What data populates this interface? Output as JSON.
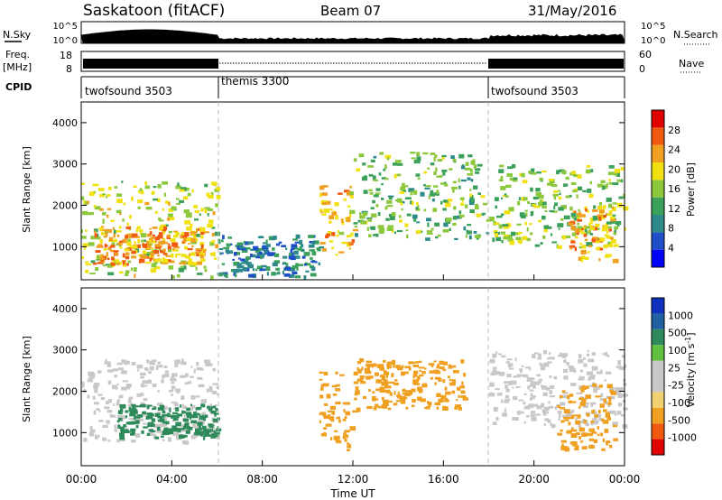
{
  "header": {
    "station": "Saskatoon (fitACF)",
    "beam": "Beam 07",
    "date": "31/May/2016"
  },
  "nsky_panel": {
    "label": "N.Sky",
    "right_label": "N.Search",
    "left_ticks": [
      "10^5",
      "10^0"
    ],
    "right_ticks": [
      "10^5",
      "10^0"
    ]
  },
  "freq_panel": {
    "label_line1": "Freq.",
    "label_line2": "[MHz]",
    "left_ticks": [
      "18",
      "8"
    ],
    "right_ticks": [
      "60",
      "0"
    ],
    "right_label": "Nave"
  },
  "cpid_panel": {
    "label": "CPID",
    "segments": [
      {
        "name": "twofsound 3503",
        "start_hour": 0,
        "end_hour": 6
      },
      {
        "name": "themis 3300",
        "start_hour": 6,
        "end_hour": 18
      },
      {
        "name": "twofsound 3503",
        "start_hour": 18,
        "end_hour": 24
      }
    ]
  },
  "xaxis": {
    "label": "Time UT",
    "ticks": [
      "00:00",
      "04:00",
      "08:00",
      "12:00",
      "16:00",
      "20:00",
      "00:00"
    ],
    "range_hours": [
      0,
      24
    ]
  },
  "colors": {
    "power_scale": [
      "#0000ff",
      "#1f4fc8",
      "#2e8a8a",
      "#3aa05a",
      "#8cc83c",
      "#f0e010",
      "#f0a020",
      "#f05a10",
      "#e00000"
    ],
    "velocity_scale": [
      "#e00000",
      "#f05a10",
      "#f0a020",
      "#f0d070",
      "#c8c8c8",
      "#c8c8c8",
      "#60c040",
      "#2e8a5a",
      "#2060a0",
      "#1030c0"
    ]
  },
  "chart_data": [
    {
      "type": "heatmap",
      "title": "Power",
      "ylabel": "Slant Range [km]",
      "yticks": [
        "1000",
        "2000",
        "3000",
        "4000"
      ],
      "ylim": [
        200,
        4500
      ],
      "xlabel": "Time UT",
      "colorbar": {
        "label": "Power [dB]",
        "ticks": [
          "4",
          "8",
          "12",
          "16",
          "20",
          "24",
          "28"
        ]
      },
      "echo_regions": [
        {
          "t0": 0.0,
          "t1": 6.0,
          "r0": 300,
          "r1": 2600,
          "level": 20
        },
        {
          "t0": 0.5,
          "t1": 5.5,
          "r0": 600,
          "r1": 1500,
          "level": 26
        },
        {
          "t0": 6.0,
          "t1": 10.5,
          "r0": 300,
          "r1": 1300,
          "level": 10
        },
        {
          "t0": 10.5,
          "t1": 12.0,
          "r0": 800,
          "r1": 2500,
          "level": 24
        },
        {
          "t0": 12.0,
          "t1": 18.0,
          "r0": 1200,
          "r1": 3300,
          "level": 16
        },
        {
          "t0": 18.0,
          "t1": 24.0,
          "r0": 1000,
          "r1": 3000,
          "level": 18
        },
        {
          "t0": 21.5,
          "t1": 23.5,
          "r0": 700,
          "r1": 2000,
          "level": 26
        }
      ]
    },
    {
      "type": "heatmap",
      "title": "Velocity",
      "ylabel": "Slant Range [km]",
      "yticks": [
        "1000",
        "2000",
        "3000",
        "4000"
      ],
      "ylim": [
        200,
        4500
      ],
      "xlabel": "Time UT",
      "colorbar": {
        "label": "Velocity [m s^-1]",
        "ticks": [
          "1000",
          "500",
          "100",
          "25",
          "-25",
          "-100",
          "-500",
          "-1000"
        ]
      },
      "echo_regions": [
        {
          "t0": 0.0,
          "t1": 6.0,
          "r0": 800,
          "r1": 2800,
          "level": 0
        },
        {
          "t0": 1.5,
          "t1": 6.0,
          "r0": 900,
          "r1": 1700,
          "level": 120
        },
        {
          "t0": 10.5,
          "t1": 12.0,
          "r0": 600,
          "r1": 2500,
          "level": -150
        },
        {
          "t0": 12.0,
          "t1": 17.0,
          "r0": 1600,
          "r1": 2800,
          "level": -120
        },
        {
          "t0": 18.0,
          "t1": 24.0,
          "r0": 1200,
          "r1": 3000,
          "level": 0
        },
        {
          "t0": 21.0,
          "t1": 23.5,
          "r0": 600,
          "r1": 2200,
          "level": -200
        }
      ]
    }
  ]
}
